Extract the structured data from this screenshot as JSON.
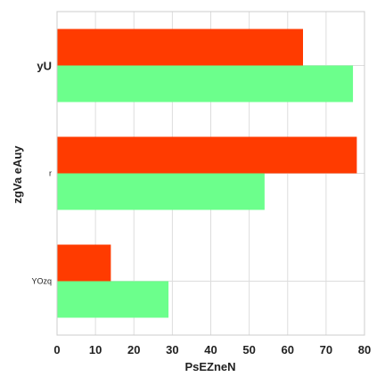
{
  "chart_data": {
    "type": "bar",
    "orientation": "horizontal",
    "title": "",
    "xlabel": "PsEZneN",
    "ylabel": "zgVa eAuy",
    "categories": [
      "yU",
      "r",
      "YOzq"
    ],
    "category_label_styles": [
      "large-bold",
      "small",
      "small"
    ],
    "xlim": [
      0,
      80
    ],
    "ylim": [
      0,
      3
    ],
    "xticks": [
      0,
      10,
      20,
      30,
      40,
      50,
      60,
      70,
      80
    ],
    "grid": true,
    "legend": "none",
    "series": [
      {
        "values": [
          64,
          78,
          14
        ],
        "color": "#ff3b00"
      },
      {
        "values": [
          77,
          54,
          29
        ],
        "color": "#6cff8c"
      }
    ]
  }
}
